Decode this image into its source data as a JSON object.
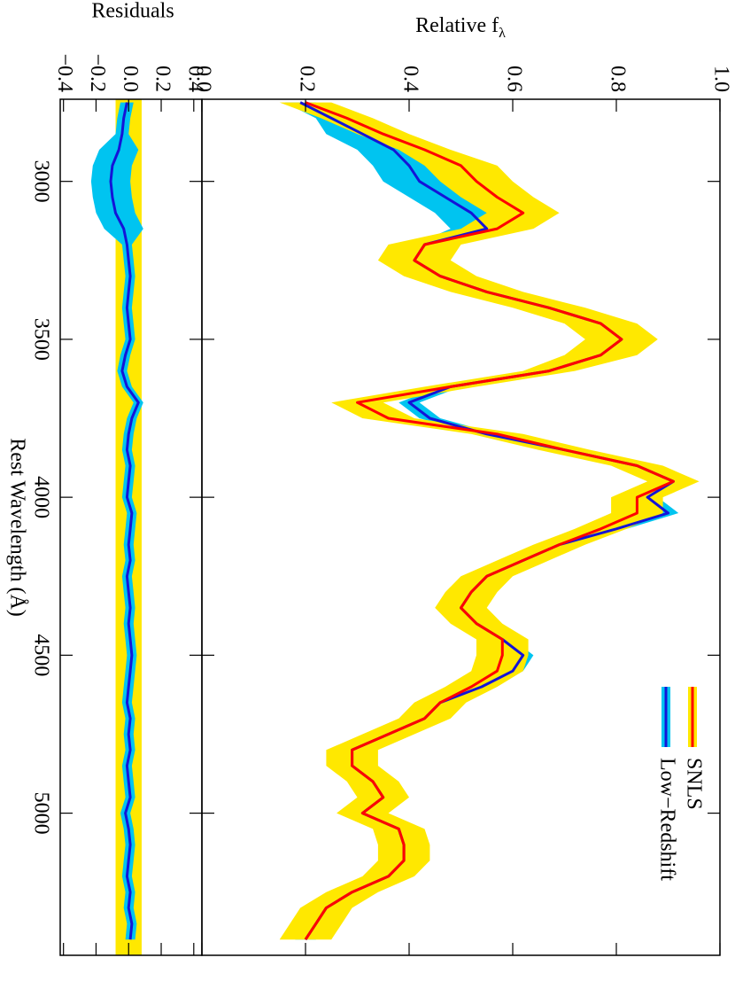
{
  "chart_data": {
    "type": "band-line",
    "y_label": "Relative f",
    "y_label_sub": "λ",
    "x_label": "Rest Wavelength (Å)",
    "x": [
      2750,
      2800,
      2850,
      2900,
      2950,
      3000,
      3050,
      3100,
      3150,
      3200,
      3250,
      3300,
      3350,
      3400,
      3450,
      3500,
      3550,
      3600,
      3650,
      3700,
      3750,
      3800,
      3850,
      3900,
      3950,
      4000,
      4050,
      4100,
      4150,
      4200,
      4250,
      4300,
      4350,
      4400,
      4450,
      4500,
      4550,
      4600,
      4650,
      4700,
      4750,
      4800,
      4850,
      4900,
      4950,
      5000,
      5050,
      5100,
      5150,
      5200,
      5250,
      5300,
      5350,
      5400
    ],
    "xlim": [
      2740,
      5450
    ],
    "xticks": [
      3000,
      3500,
      4000,
      4500,
      5000
    ],
    "ylim": [
      0,
      1
    ],
    "yticks": [
      {
        "value": 0,
        "label": "0.0"
      },
      0.2,
      0.4,
      0.6,
      0.8,
      {
        "value": 1,
        "label": "1.0"
      }
    ],
    "legend": "upper right",
    "series": [
      {
        "name": "SNLS",
        "color": "#ff0000",
        "band_color": "#ffe800",
        "values": [
          0.2,
          0.28,
          0.35,
          0.43,
          0.5,
          0.53,
          0.57,
          0.62,
          0.57,
          0.43,
          0.41,
          0.46,
          0.55,
          0.67,
          0.77,
          0.81,
          0.77,
          0.67,
          0.48,
          0.3,
          0.36,
          0.57,
          0.7,
          0.84,
          0.91,
          0.84,
          0.84,
          0.77,
          0.69,
          0.62,
          0.55,
          0.52,
          0.5,
          0.53,
          0.58,
          0.58,
          0.57,
          0.52,
          0.46,
          0.43,
          0.36,
          0.29,
          0.29,
          0.33,
          0.35,
          0.31,
          0.38,
          0.39,
          0.39,
          0.36,
          0.29,
          0.24,
          0.22,
          0.2
        ],
        "errors": [
          0.05,
          0.05,
          0.05,
          0.05,
          0.07,
          0.07,
          0.07,
          0.07,
          0.07,
          0.07,
          0.07,
          0.07,
          0.07,
          0.07,
          0.07,
          0.07,
          0.07,
          0.05,
          0.05,
          0.05,
          0.05,
          0.05,
          0.05,
          0.05,
          0.05,
          0.05,
          0.05,
          0.05,
          0.05,
          0.05,
          0.05,
          0.05,
          0.05,
          0.05,
          0.05,
          0.05,
          0.05,
          0.05,
          0.05,
          0.05,
          0.05,
          0.05,
          0.05,
          0.05,
          0.05,
          0.05,
          0.05,
          0.05,
          0.05,
          0.05,
          0.05,
          0.05,
          0.05,
          0.05
        ]
      },
      {
        "name": "Low−Redshift",
        "color": "#1414d8",
        "band_color": "#00c4f0",
        "values": [
          0.19,
          0.25,
          0.31,
          0.37,
          0.4,
          0.42,
          0.47,
          0.52,
          0.55,
          0.43,
          0.41,
          0.46,
          0.55,
          0.67,
          0.77,
          0.81,
          0.77,
          0.67,
          0.48,
          0.4,
          0.44,
          0.55,
          0.7,
          0.84,
          0.91,
          0.86,
          0.9,
          0.8,
          0.69,
          0.62,
          0.55,
          0.52,
          0.5,
          0.53,
          0.58,
          0.62,
          0.6,
          0.54,
          0.46,
          0.43,
          0.36,
          0.29,
          0.29,
          0.33,
          0.35,
          0.31,
          0.38,
          0.39,
          0.39,
          0.36,
          0.29,
          0.24,
          0.22,
          0.2
        ],
        "errors": [
          0.03,
          0.03,
          0.07,
          0.07,
          0.07,
          0.07,
          0.07,
          0.07,
          0.07,
          0.02,
          0.02,
          0.02,
          0.02,
          0.02,
          0.02,
          0.02,
          0.02,
          0.02,
          0.02,
          0.02,
          0.02,
          0.02,
          0.02,
          0.02,
          0.02,
          0.02,
          0.02,
          0.02,
          0.02,
          0.02,
          0.02,
          0.02,
          0.02,
          0.02,
          0.02,
          0.02,
          0.02,
          0.02,
          0.02,
          0.02,
          0.02,
          0.02,
          0.02,
          0.02,
          0.02,
          0.02,
          0.02,
          0.02,
          0.02,
          0.02,
          0.02,
          0.02,
          0.02,
          0.02
        ]
      }
    ],
    "residuals": {
      "y_label": "Residuals",
      "ylim": [
        -0.42,
        0.45
      ],
      "yticks": [
        {
          "value": -0.4,
          "label": "−0.4"
        },
        {
          "value": -0.2,
          "label": "−0.2"
        },
        {
          "value": 0,
          "label": "0.0"
        },
        0.2,
        0.4
      ],
      "band": {
        "color": "#ffe800",
        "halfwidth": 0.08
      },
      "series": [
        {
          "color": "#1414d8",
          "band_color": "#00c4f0",
          "values": [
            -0.01,
            -0.03,
            -0.04,
            -0.06,
            -0.1,
            -0.11,
            -0.1,
            -0.08,
            -0.03,
            -0.01,
            0.0,
            0.01,
            0.0,
            -0.01,
            0.0,
            0.01,
            -0.02,
            -0.04,
            -0.01,
            0.06,
            0.02,
            0.0,
            -0.01,
            0.01,
            0.0,
            -0.01,
            0.02,
            0.01,
            0.0,
            0.01,
            -0.01,
            0.0,
            0.01,
            0.0,
            0.01,
            0.02,
            0.01,
            0.0,
            -0.01,
            0.01,
            0.0,
            0.01,
            -0.01,
            0.0,
            0.01,
            -0.02,
            0.0,
            0.01,
            0.0,
            -0.01,
            0.01,
            0.0,
            0.02,
            0.01
          ],
          "errors": [
            0.04,
            0.04,
            0.04,
            0.12,
            0.12,
            0.12,
            0.12,
            0.12,
            0.12,
            0.03,
            0.03,
            0.03,
            0.03,
            0.03,
            0.03,
            0.03,
            0.03,
            0.03,
            0.03,
            0.03,
            0.03,
            0.03,
            0.03,
            0.03,
            0.03,
            0.03,
            0.03,
            0.03,
            0.03,
            0.03,
            0.03,
            0.03,
            0.03,
            0.03,
            0.03,
            0.03,
            0.03,
            0.03,
            0.03,
            0.03,
            0.03,
            0.03,
            0.03,
            0.03,
            0.03,
            0.03,
            0.03,
            0.03,
            0.03,
            0.03,
            0.03,
            0.03,
            0.03,
            0.03
          ]
        }
      ]
    }
  }
}
